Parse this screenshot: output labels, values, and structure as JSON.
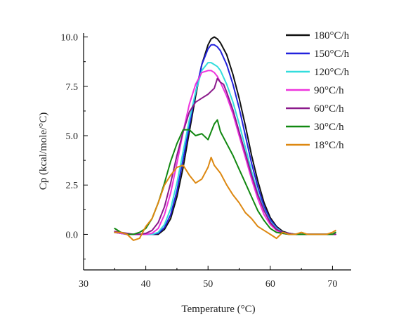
{
  "chart_data": {
    "type": "line",
    "xlabel": "Temperature (°C)",
    "ylabel": "Cp (kcal/mole/°C)",
    "xlim": [
      30,
      73
    ],
    "ylim": [
      -1.8,
      10.2
    ],
    "x_ticks": [
      "30",
      "40",
      "50",
      "60",
      "70"
    ],
    "y_ticks": [
      "0.0",
      "2.5",
      "5.0",
      "7.5",
      "10.0"
    ],
    "legend_position": "top-right",
    "grid": false,
    "series": [
      {
        "name": "180°C/h",
        "color": "#111111",
        "x": [
          35,
          36,
          37,
          38,
          39,
          40,
          41,
          42,
          43,
          44,
          45,
          46,
          47,
          48,
          49,
          50,
          50.5,
          51,
          51.5,
          52,
          53,
          54,
          55,
          56,
          57,
          58,
          59,
          60,
          61,
          62,
          63,
          64,
          65,
          66,
          67,
          68,
          69,
          70,
          70.5
        ],
        "y": [
          0.1,
          0.05,
          0.0,
          0.0,
          0.0,
          0.0,
          0.0,
          0.0,
          0.25,
          0.8,
          1.9,
          3.4,
          5.2,
          7.0,
          8.6,
          9.6,
          9.9,
          10.0,
          9.9,
          9.7,
          9.1,
          8.1,
          6.9,
          5.5,
          4.0,
          2.7,
          1.6,
          0.85,
          0.4,
          0.15,
          0.05,
          0.0,
          0.0,
          0.0,
          0.0,
          0.0,
          0.0,
          0.0,
          0.0
        ]
      },
      {
        "name": "150°C/h",
        "color": "#2222dd",
        "x": [
          35,
          36,
          37,
          38,
          39,
          40,
          41,
          42,
          43,
          44,
          45,
          46,
          47,
          48,
          49,
          50,
          50.5,
          51,
          51.5,
          52,
          53,
          54,
          55,
          56,
          57,
          58,
          59,
          60,
          61,
          62,
          63,
          64,
          65,
          66,
          67,
          68,
          69,
          70,
          70.5
        ],
        "y": [
          0.1,
          0.05,
          0.0,
          0.0,
          0.0,
          0.0,
          0.0,
          0.05,
          0.35,
          1.0,
          2.2,
          3.8,
          5.5,
          7.2,
          8.6,
          9.4,
          9.6,
          9.6,
          9.5,
          9.3,
          8.6,
          7.6,
          6.4,
          5.0,
          3.6,
          2.4,
          1.4,
          0.75,
          0.35,
          0.1,
          0.05,
          0.0,
          0.0,
          0.0,
          0.0,
          0.0,
          0.0,
          0.0,
          0.0
        ]
      },
      {
        "name": "120°C/h",
        "color": "#33dddd",
        "x": [
          35,
          36,
          37,
          38,
          39,
          40,
          41,
          42,
          43,
          44,
          45,
          46,
          47,
          48,
          49,
          50,
          50.5,
          51,
          51.5,
          52,
          53,
          54,
          55,
          56,
          57,
          58,
          59,
          60,
          61,
          62,
          63,
          64,
          65,
          66,
          67,
          68,
          69,
          70,
          70.5
        ],
        "y": [
          0.1,
          0.05,
          0.0,
          0.0,
          0.0,
          0.0,
          0.0,
          0.1,
          0.5,
          1.3,
          2.6,
          4.2,
          5.8,
          7.2,
          8.3,
          8.7,
          8.7,
          8.6,
          8.5,
          8.3,
          7.6,
          6.7,
          5.6,
          4.4,
          3.2,
          2.1,
          1.25,
          0.65,
          0.3,
          0.1,
          0.05,
          0.0,
          0.0,
          0.0,
          0.0,
          0.0,
          0.0,
          0.0,
          0.0
        ]
      },
      {
        "name": "90°C/h",
        "color": "#ee33dd",
        "x": [
          35,
          36,
          37,
          38,
          39,
          40,
          41,
          42,
          43,
          44,
          45,
          46,
          47,
          48,
          49,
          50,
          50.5,
          51,
          51.5,
          52,
          53,
          54,
          55,
          56,
          57,
          58,
          59,
          60,
          61,
          62,
          63,
          64,
          65,
          66,
          67,
          68,
          69,
          70,
          70.5
        ],
        "y": [
          0.1,
          0.05,
          0.0,
          0.0,
          0.0,
          0.0,
          0.05,
          0.3,
          1.0,
          2.1,
          3.6,
          5.2,
          6.6,
          7.6,
          8.2,
          8.3,
          8.3,
          8.2,
          8.0,
          7.7,
          7.0,
          6.1,
          5.0,
          3.9,
          2.8,
          1.8,
          1.0,
          0.5,
          0.2,
          0.05,
          0.0,
          0.0,
          0.0,
          0.0,
          0.0,
          0.0,
          0.0,
          0.0,
          0.0
        ]
      },
      {
        "name": "60°C/h",
        "color": "#8b1a8b",
        "x": [
          35,
          36,
          37,
          38,
          39,
          40,
          41,
          42,
          43,
          44,
          45,
          46,
          47,
          48,
          49,
          50,
          51,
          51.5,
          52,
          52.5,
          53,
          54,
          55,
          56,
          57,
          58,
          59,
          60,
          61,
          62,
          63,
          64,
          65,
          66,
          67,
          68,
          69,
          70,
          70.5
        ],
        "y": [
          0.15,
          0.1,
          0.05,
          0.0,
          0.0,
          0.05,
          0.2,
          0.6,
          1.4,
          2.6,
          4.0,
          5.2,
          6.2,
          6.7,
          6.9,
          7.1,
          7.4,
          7.9,
          7.7,
          7.6,
          7.2,
          6.3,
          5.2,
          4.1,
          3.0,
          2.0,
          1.2,
          0.6,
          0.25,
          0.1,
          0.05,
          0.0,
          0.0,
          0.0,
          0.0,
          0.0,
          0.0,
          0.0,
          0.0
        ]
      },
      {
        "name": "30°C/h",
        "color": "#118811",
        "x": [
          35,
          36,
          37,
          38,
          39,
          40,
          41,
          42,
          43,
          44,
          45,
          46,
          47,
          48,
          49,
          50,
          51,
          51.5,
          52,
          53,
          54,
          55,
          56,
          57,
          58,
          59,
          60,
          61,
          62,
          63,
          64,
          65,
          66,
          67,
          68,
          69,
          70,
          70.5
        ],
        "y": [
          0.3,
          0.1,
          0.0,
          0.0,
          0.1,
          0.3,
          0.8,
          1.6,
          2.6,
          3.7,
          4.6,
          5.3,
          5.3,
          5.0,
          5.1,
          4.8,
          5.6,
          5.8,
          5.2,
          4.6,
          4.0,
          3.3,
          2.6,
          1.9,
          1.2,
          0.7,
          0.3,
          0.1,
          0.05,
          0.0,
          0.0,
          0.0,
          0.0,
          0.0,
          0.0,
          0.0,
          0.0,
          0.1
        ]
      },
      {
        "name": "18°C/h",
        "color": "#dd8811",
        "x": [
          35,
          36,
          37,
          38,
          39,
          40,
          41,
          42,
          43,
          44,
          45,
          46,
          47,
          48,
          49,
          50,
          50.5,
          51,
          52,
          53,
          54,
          55,
          56,
          57,
          58,
          59,
          60,
          61,
          62,
          63,
          64,
          65,
          66,
          67,
          68,
          69,
          70,
          70.5
        ],
        "y": [
          0.1,
          0.1,
          0.0,
          -0.3,
          -0.2,
          0.4,
          0.8,
          1.6,
          2.5,
          3.0,
          3.4,
          3.5,
          3.0,
          2.6,
          2.8,
          3.4,
          3.9,
          3.5,
          3.1,
          2.5,
          2.0,
          1.6,
          1.1,
          0.8,
          0.4,
          0.2,
          0.0,
          -0.2,
          0.1,
          0.0,
          0.0,
          0.1,
          0.0,
          0.0,
          0.0,
          0.0,
          0.1,
          0.2
        ]
      }
    ]
  }
}
